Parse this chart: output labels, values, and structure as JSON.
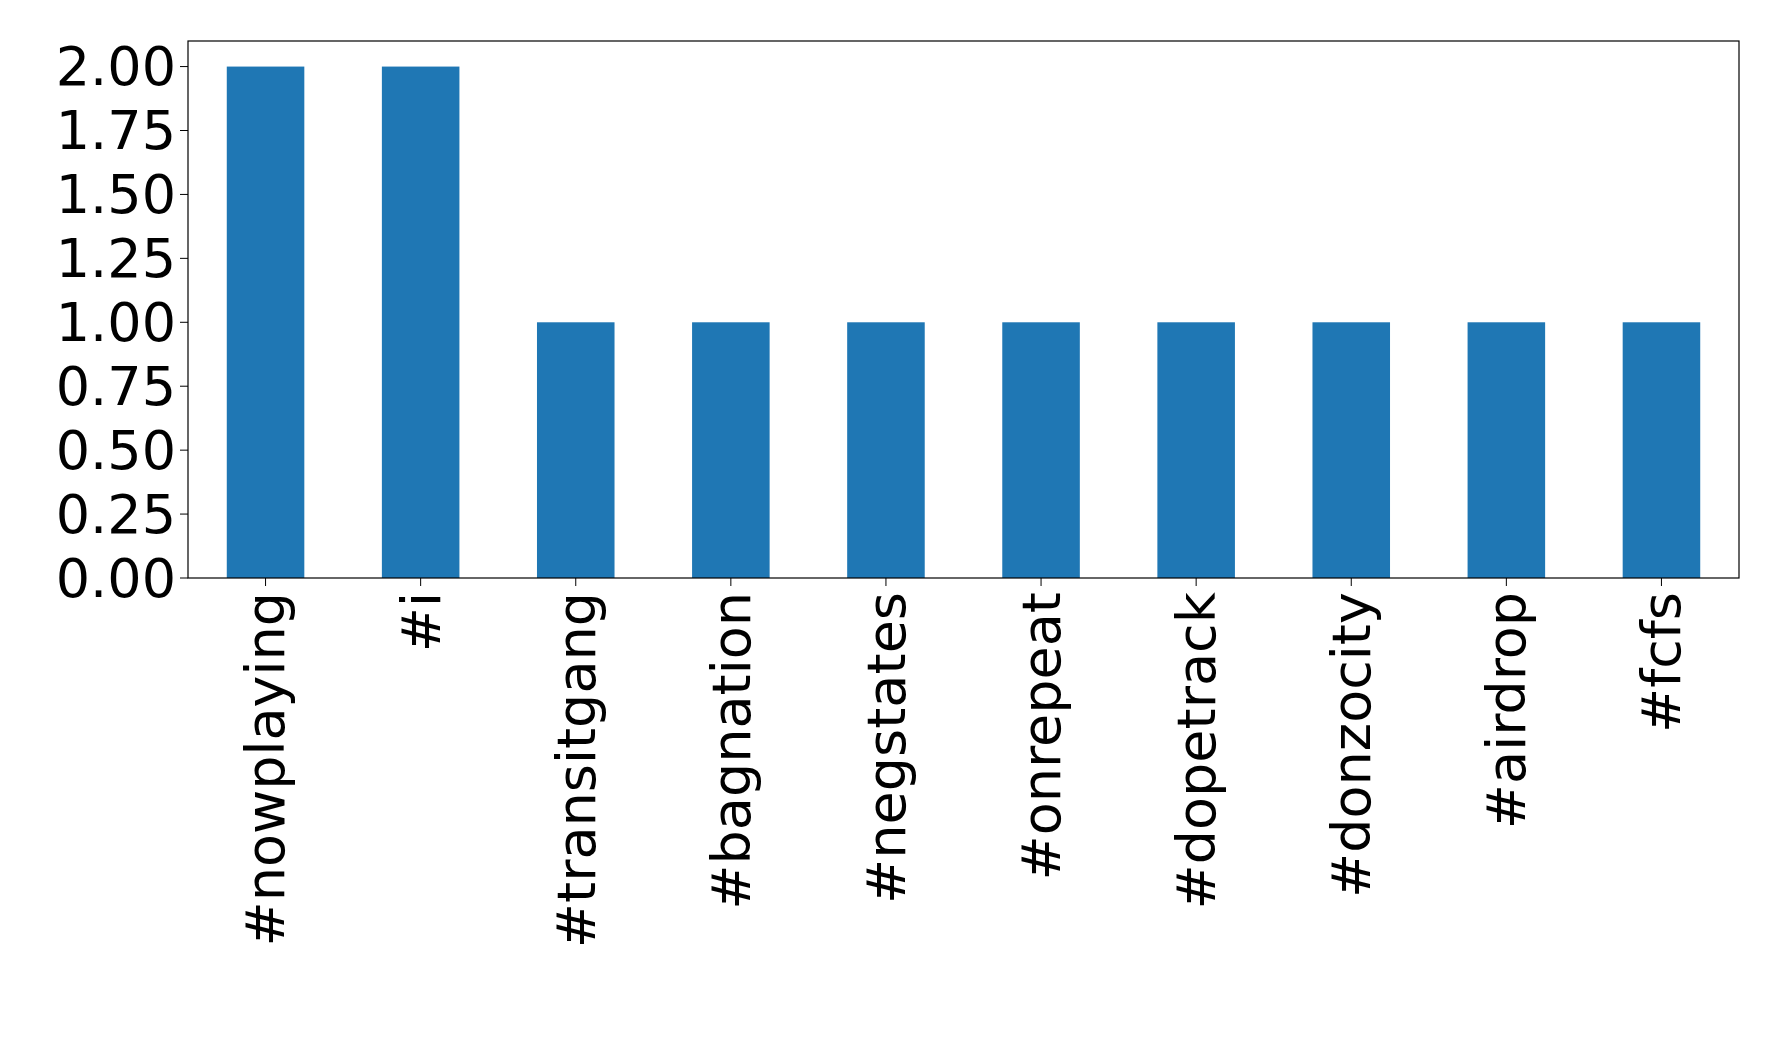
{
  "chart_data": {
    "type": "bar",
    "categories": [
      "#nowplaying",
      "#i",
      "#transitgang",
      "#bagnation",
      "#negstates",
      "#onrepeat",
      "#dopetrack",
      "#donzocity",
      "#airdrop",
      "#fcfs"
    ],
    "values": [
      2,
      2,
      1,
      1,
      1,
      1,
      1,
      1,
      1,
      1
    ],
    "color": "#1f77b4",
    "ylim": [
      0,
      2.1
    ],
    "yticks": [
      {
        "value": 0,
        "label": "0.00"
      },
      {
        "value": 0.25,
        "label": "0.25"
      },
      {
        "value": 0.5,
        "label": "0.50"
      },
      {
        "value": 0.75,
        "label": "0.75"
      },
      {
        "value": 1,
        "label": "1.00"
      },
      {
        "value": 1.25,
        "label": "1.25"
      },
      {
        "value": 1.5,
        "label": "1.50"
      },
      {
        "value": 1.75,
        "label": "1.75"
      },
      {
        "value": 2,
        "label": "2.00"
      }
    ],
    "grid": false
  }
}
